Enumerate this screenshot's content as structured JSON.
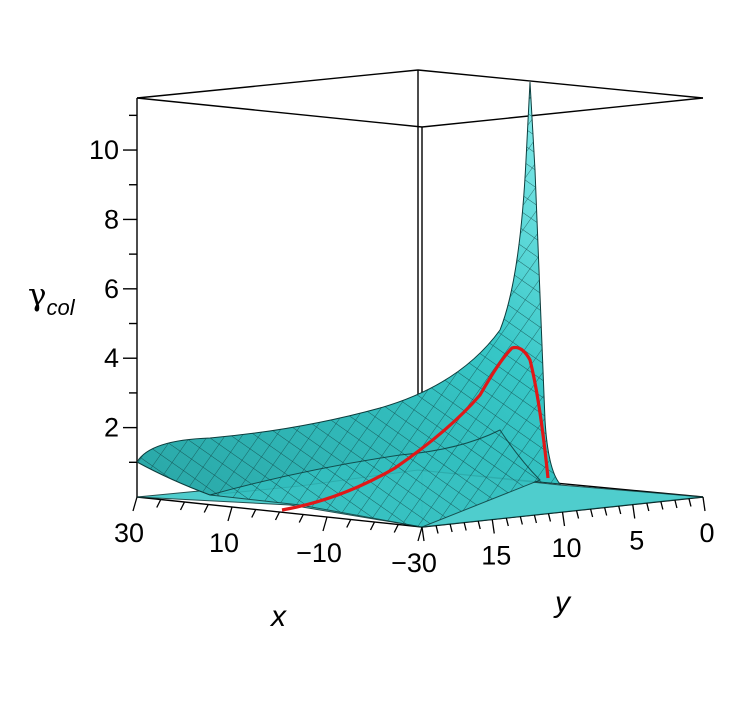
{
  "chart_data": {
    "type": "surface3d",
    "title": "",
    "zlabel": "γ",
    "zlabel_subscript": "col",
    "xlabel": "x",
    "ylabel": "y",
    "z_ticks": [
      "2",
      "4",
      "6",
      "8",
      "10"
    ],
    "x_ticks": [
      "30",
      "10",
      "−10",
      "−30"
    ],
    "y_ticks": [
      "15",
      "10",
      "5",
      "0"
    ],
    "x_range": [
      -30,
      30
    ],
    "y_range": [
      0,
      20
    ],
    "z_range": [
      0,
      11.5
    ],
    "surface_color": "#35c4c4",
    "surface_edge_color": "#0d3d3d",
    "curve_color": "#e01818",
    "peak": {
      "x": 0,
      "y": 13,
      "z": 11.0
    },
    "surface": {
      "description_points": [
        {
          "x": 30,
          "y": 20,
          "z": 1.2
        },
        {
          "x": 30,
          "y": 0,
          "z": 0.1
        },
        {
          "x": 0,
          "y": 13,
          "z": 11.0
        },
        {
          "x": -30,
          "y": 13,
          "z": 0.1
        }
      ]
    },
    "curve": {
      "points": [
        {
          "x": 5,
          "y": 20,
          "z": 0.0
        },
        {
          "x": 3,
          "y": 18,
          "z": 0.4
        },
        {
          "x": 1.5,
          "y": 16,
          "z": 1.4
        },
        {
          "x": 0.5,
          "y": 14,
          "z": 3.0
        },
        {
          "x": 0,
          "y": 13,
          "z": 4.3
        },
        {
          "x": -0.5,
          "y": 12,
          "z": 3.5
        },
        {
          "x": -1,
          "y": 11,
          "z": 1.2
        },
        {
          "x": -1.5,
          "y": 10.5,
          "z": 0.2
        }
      ]
    }
  }
}
